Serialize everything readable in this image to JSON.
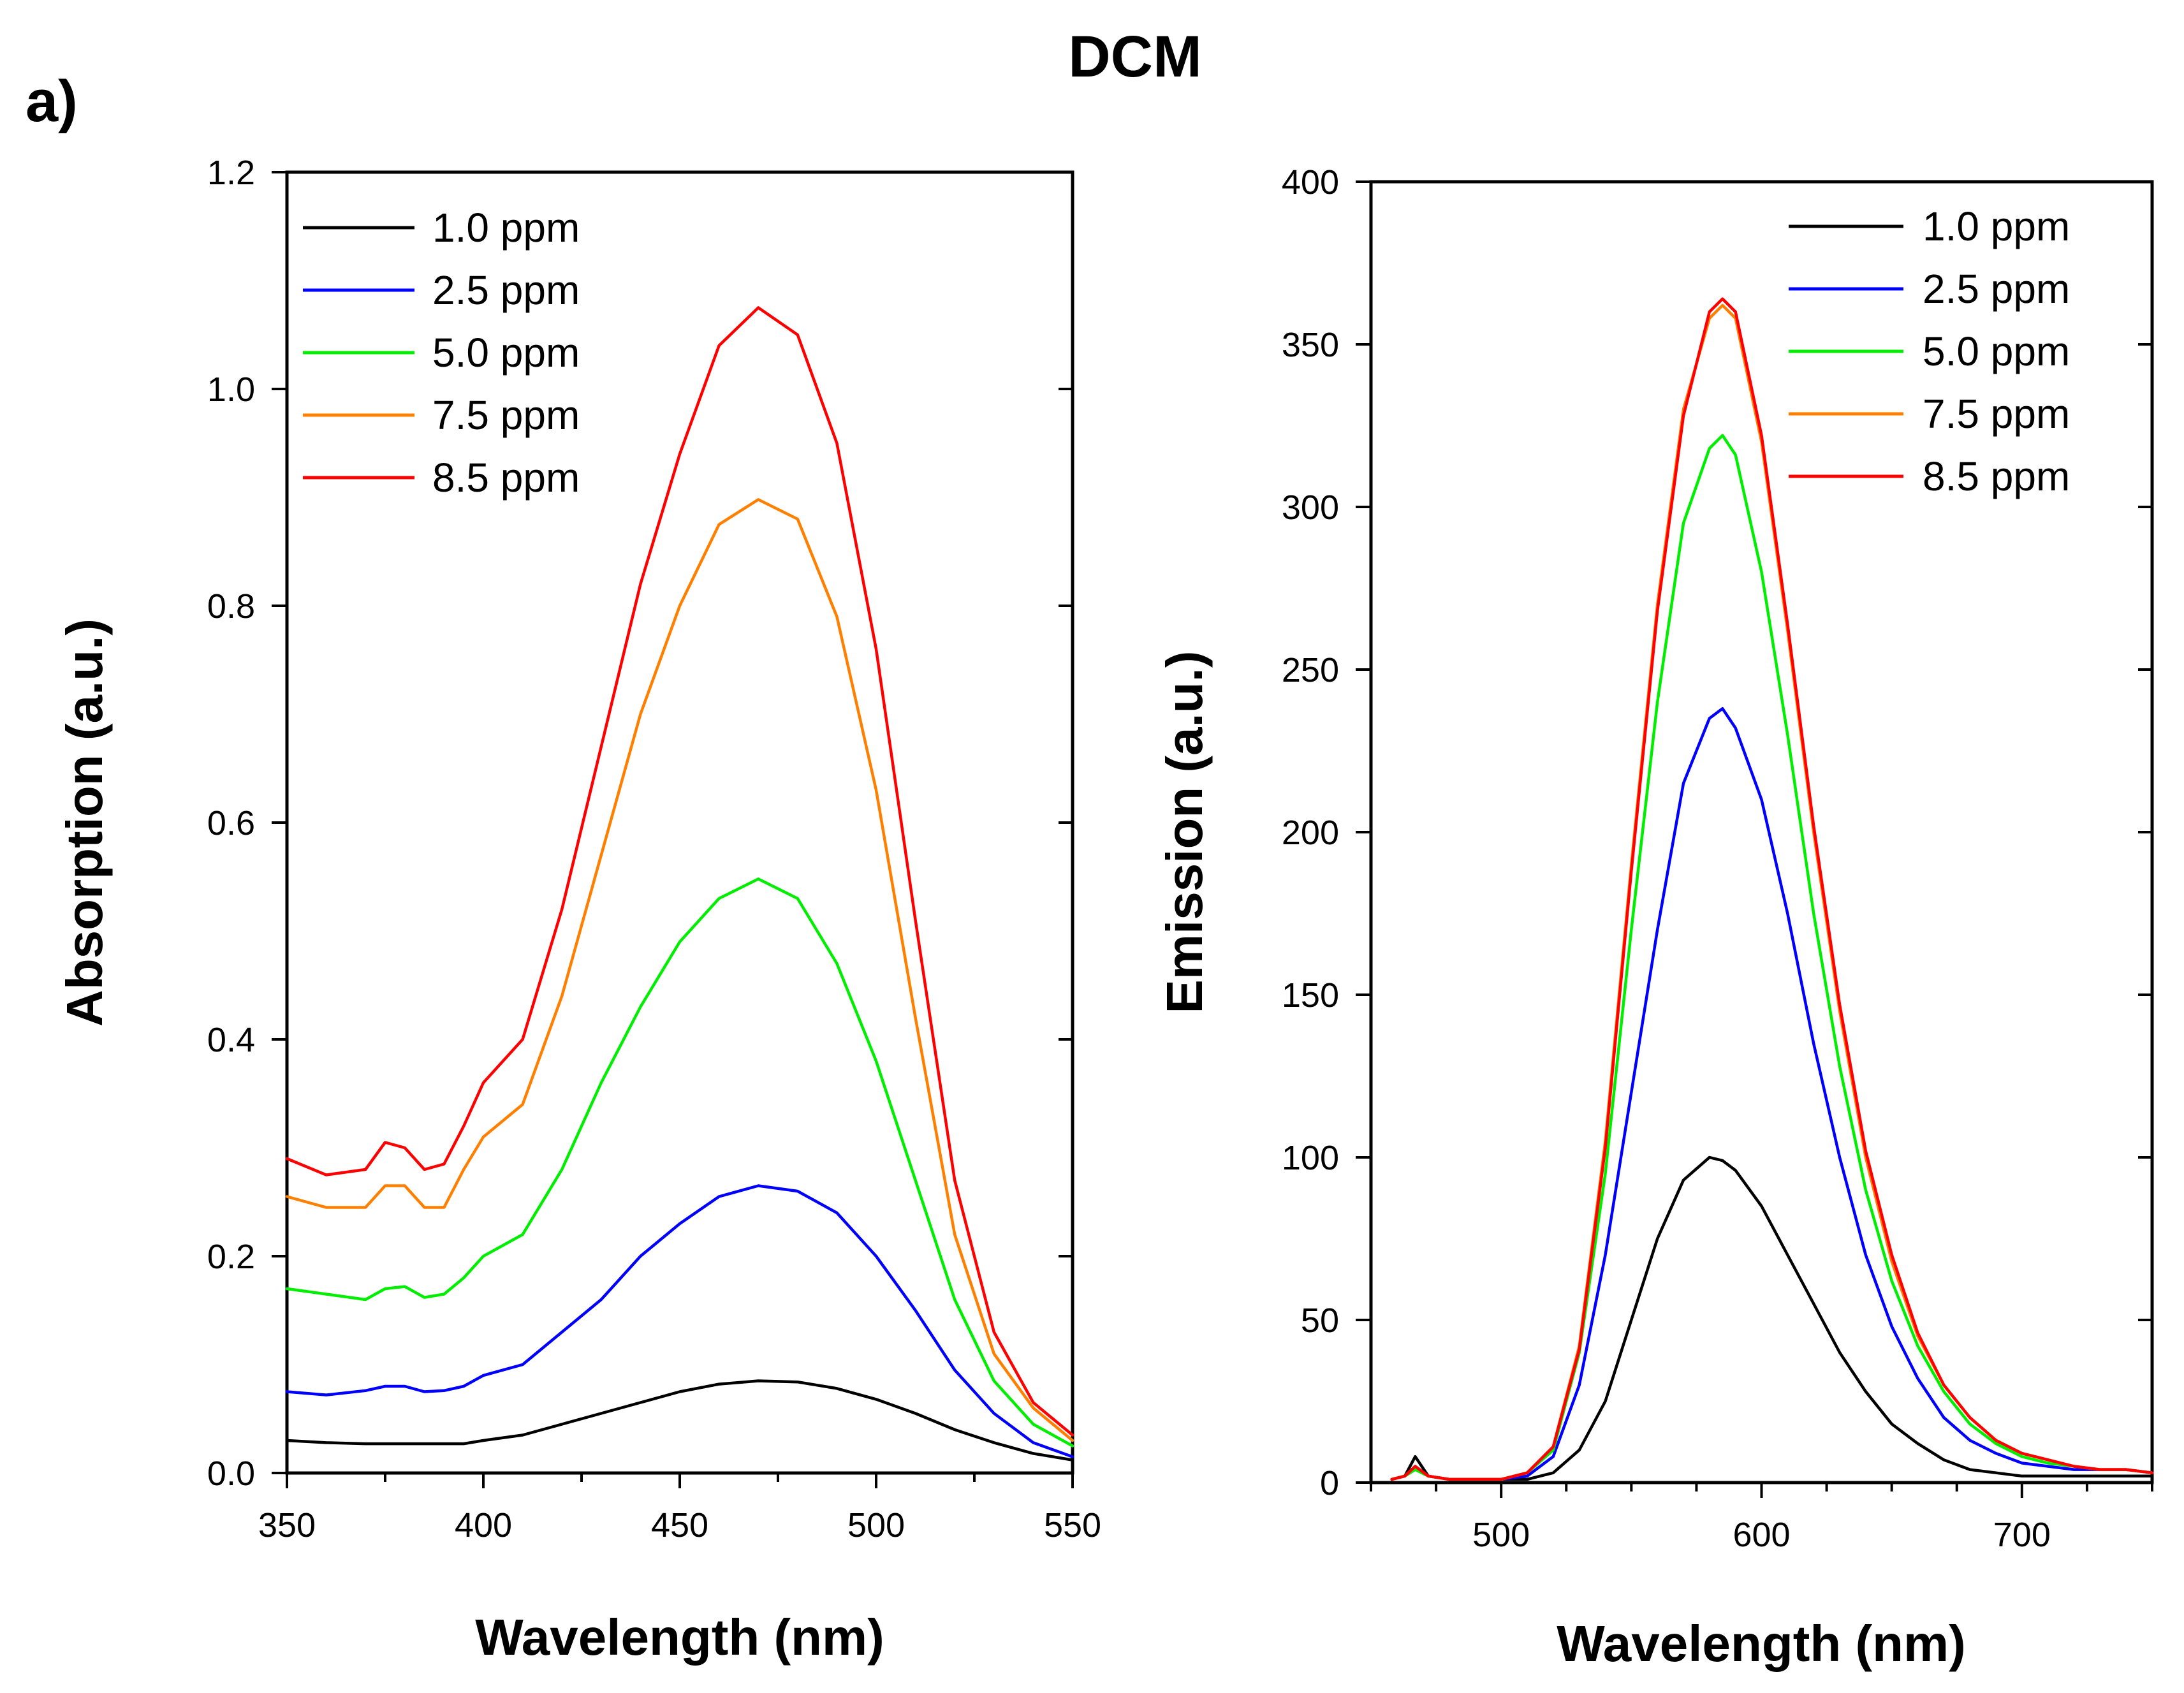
{
  "panel_label": "a)",
  "figure_title": "DCM",
  "chart_data": [
    {
      "type": "line",
      "ylabel": "Absorption (a.u.)",
      "xlabel": "Wavelength (nm)",
      "xlim": [
        350,
        550
      ],
      "ylim": [
        0.0,
        1.2
      ],
      "xticks": [
        350,
        400,
        450,
        500,
        550
      ],
      "yticks": [
        0.0,
        0.2,
        0.4,
        0.6,
        0.8,
        1.0,
        1.2
      ],
      "ytick_decimals": 1,
      "legend_position": "top-left",
      "x": [
        350,
        360,
        370,
        375,
        380,
        385,
        390,
        395,
        400,
        410,
        420,
        430,
        440,
        450,
        460,
        470,
        480,
        490,
        500,
        510,
        520,
        530,
        540,
        550
      ],
      "series": [
        {
          "name": "1.0 ppm",
          "color": "#000000",
          "values": [
            0.03,
            0.028,
            0.027,
            0.027,
            0.027,
            0.027,
            0.027,
            0.027,
            0.03,
            0.035,
            0.045,
            0.055,
            0.065,
            0.075,
            0.082,
            0.085,
            0.084,
            0.078,
            0.068,
            0.055,
            0.04,
            0.028,
            0.018,
            0.012
          ]
        },
        {
          "name": "2.5 ppm",
          "color": "#0000ff",
          "values": [
            0.075,
            0.072,
            0.076,
            0.08,
            0.08,
            0.075,
            0.076,
            0.08,
            0.09,
            0.1,
            0.13,
            0.16,
            0.2,
            0.23,
            0.255,
            0.265,
            0.26,
            0.24,
            0.2,
            0.15,
            0.095,
            0.055,
            0.028,
            0.015
          ]
        },
        {
          "name": "5.0 ppm",
          "color": "#00ee00",
          "values": [
            0.17,
            0.165,
            0.16,
            0.17,
            0.172,
            0.162,
            0.165,
            0.18,
            0.2,
            0.22,
            0.28,
            0.36,
            0.43,
            0.49,
            0.53,
            0.548,
            0.53,
            0.47,
            0.38,
            0.27,
            0.16,
            0.085,
            0.045,
            0.025
          ]
        },
        {
          "name": "7.5 ppm",
          "color": "#ff8000",
          "values": [
            0.255,
            0.245,
            0.245,
            0.265,
            0.265,
            0.245,
            0.245,
            0.28,
            0.31,
            0.34,
            0.44,
            0.57,
            0.7,
            0.8,
            0.875,
            0.898,
            0.88,
            0.79,
            0.63,
            0.42,
            0.22,
            0.11,
            0.06,
            0.03
          ]
        },
        {
          "name": "8.5 ppm",
          "color": "#ff0000",
          "values": [
            0.29,
            0.275,
            0.28,
            0.305,
            0.3,
            0.28,
            0.285,
            0.32,
            0.36,
            0.4,
            0.52,
            0.67,
            0.82,
            0.94,
            1.04,
            1.075,
            1.05,
            0.95,
            0.76,
            0.51,
            0.27,
            0.13,
            0.065,
            0.035
          ]
        }
      ]
    },
    {
      "type": "line",
      "ylabel": "Emission (a.u.)",
      "xlabel": "Wavelength (nm)",
      "xlim": [
        450,
        750
      ],
      "ylim": [
        0,
        400
      ],
      "xticks": [
        500,
        600,
        700
      ],
      "yticks": [
        0,
        50,
        100,
        150,
        200,
        250,
        300,
        350,
        400
      ],
      "ytick_decimals": 0,
      "legend_position": "top-right",
      "x": [
        458,
        463,
        467,
        472,
        480,
        500,
        510,
        520,
        530,
        540,
        550,
        560,
        570,
        580,
        585,
        590,
        600,
        610,
        620,
        630,
        640,
        650,
        660,
        670,
        680,
        690,
        700,
        710,
        720,
        730,
        740,
        750
      ],
      "series": [
        {
          "name": "1.0 ppm",
          "color": "#000000",
          "values": [
            1,
            2,
            8,
            2,
            1,
            1,
            1,
            3,
            10,
            25,
            50,
            75,
            93,
            100,
            99,
            96,
            85,
            70,
            55,
            40,
            28,
            18,
            12,
            7,
            4,
            3,
            2,
            2,
            2,
            2,
            2,
            2
          ]
        },
        {
          "name": "2.5 ppm",
          "color": "#0000ff",
          "values": [
            1,
            2,
            5,
            2,
            1,
            1,
            2,
            8,
            30,
            70,
            120,
            170,
            215,
            235,
            238,
            232,
            210,
            175,
            135,
            100,
            70,
            48,
            32,
            20,
            13,
            9,
            6,
            5,
            4,
            4,
            4,
            3
          ]
        },
        {
          "name": "5.0 ppm",
          "color": "#00ee00",
          "values": [
            1,
            2,
            4,
            2,
            1,
            1,
            3,
            10,
            40,
            95,
            170,
            240,
            295,
            318,
            322,
            316,
            280,
            230,
            175,
            128,
            90,
            62,
            42,
            28,
            18,
            12,
            8,
            6,
            5,
            4,
            4,
            3
          ]
        },
        {
          "name": "7.5 ppm",
          "color": "#ff8000",
          "values": [
            1,
            2,
            5,
            2,
            1,
            1,
            3,
            11,
            42,
            105,
            190,
            270,
            330,
            358,
            362,
            358,
            320,
            262,
            200,
            145,
            100,
            68,
            45,
            30,
            20,
            13,
            9,
            7,
            5,
            4,
            4,
            3
          ]
        },
        {
          "name": "8.5 ppm",
          "color": "#ff0000",
          "values": [
            1,
            2,
            5,
            2,
            1,
            1,
            3,
            11,
            41,
            103,
            188,
            268,
            328,
            360,
            364,
            360,
            322,
            264,
            202,
            147,
            102,
            70,
            46,
            30,
            20,
            13,
            9,
            7,
            5,
            4,
            4,
            3
          ]
        }
      ]
    }
  ]
}
